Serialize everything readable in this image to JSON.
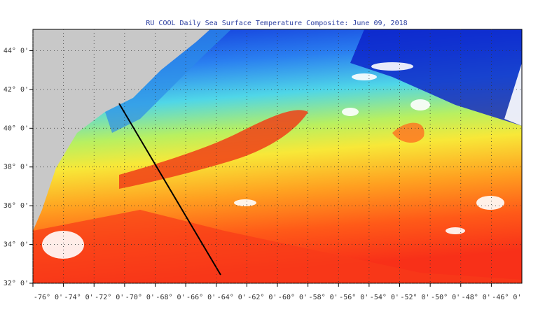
{
  "map": {
    "title": "RU COOL Daily Sea Surface Temperature Composite:  June 09, 2018",
    "xlim": [
      -76,
      -44
    ],
    "ylim": [
      32,
      45.1
    ],
    "lon_ticks": [
      {
        "value": -76,
        "label": "-76° 0'"
      },
      {
        "value": -74,
        "label": "-74° 0'"
      },
      {
        "value": -72,
        "label": "-72° 0'"
      },
      {
        "value": -70,
        "label": "-70° 0'"
      },
      {
        "value": -68,
        "label": "-68° 0'"
      },
      {
        "value": -66,
        "label": "-66° 0'"
      },
      {
        "value": -64,
        "label": "-64° 0'"
      },
      {
        "value": -62,
        "label": "-62° 0'"
      },
      {
        "value": -60,
        "label": "-60° 0'"
      },
      {
        "value": -58,
        "label": "-58° 0'"
      },
      {
        "value": -56,
        "label": "-56° 0'"
      },
      {
        "value": -54,
        "label": "-54° 0'"
      },
      {
        "value": -52,
        "label": "-52° 0'"
      },
      {
        "value": -50,
        "label": "-50° 0'"
      },
      {
        "value": -48,
        "label": "-48° 0'"
      },
      {
        "value": -46,
        "label": "-46° 0'"
      }
    ],
    "lat_ticks": [
      {
        "value": 44,
        "label": "44° 0'"
      },
      {
        "value": 42,
        "label": "42° 0'"
      },
      {
        "value": 40,
        "label": "40° 0'"
      },
      {
        "value": 38,
        "label": "38° 0'"
      },
      {
        "value": 36,
        "label": "36° 0'"
      },
      {
        "value": 34,
        "label": "34° 0'"
      },
      {
        "value": 32,
        "label": "32° 0'"
      }
    ]
  }
}
